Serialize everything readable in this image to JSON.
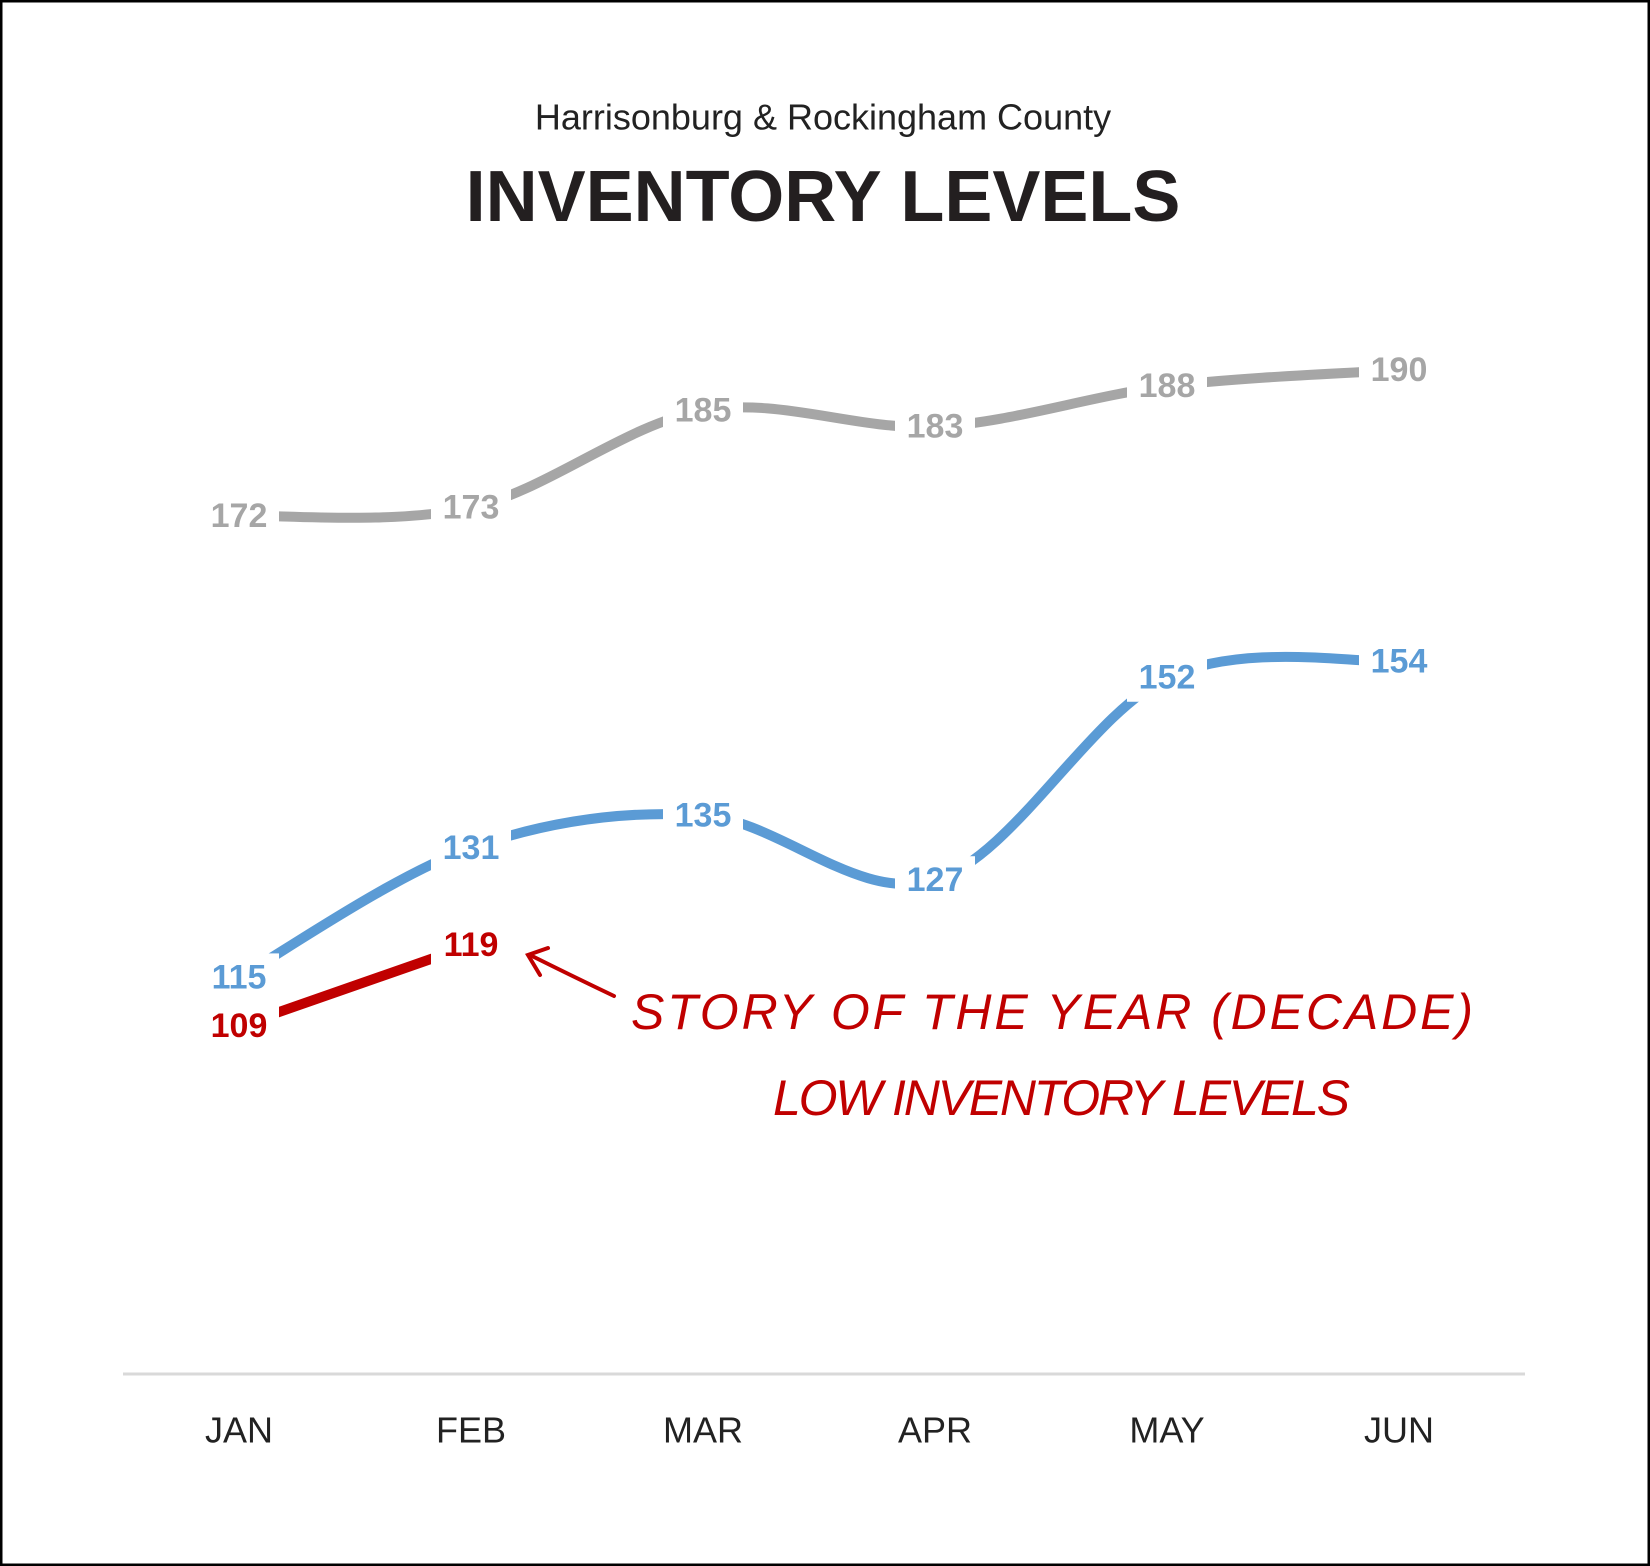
{
  "chart_data": {
    "type": "line",
    "subtitle": "Harrisonburg & Rockingham County",
    "title": "INVENTORY LEVELS",
    "categories": [
      "JAN",
      "FEB",
      "MAR",
      "APR",
      "MAY",
      "JUN"
    ],
    "series": [
      {
        "color": "#a6a6a6",
        "values": [
          172,
          173,
          185,
          183,
          188,
          190
        ]
      },
      {
        "color": "#5b9bd5",
        "values": [
          115,
          131,
          135,
          127,
          152,
          154
        ]
      },
      {
        "color": "#c00000",
        "values": [
          109,
          119,
          null,
          null,
          null,
          null
        ]
      }
    ],
    "annotations": [
      "STORY OF THE YEAR (DECADE)",
      "LOW INVENTORY LEVELS"
    ]
  }
}
